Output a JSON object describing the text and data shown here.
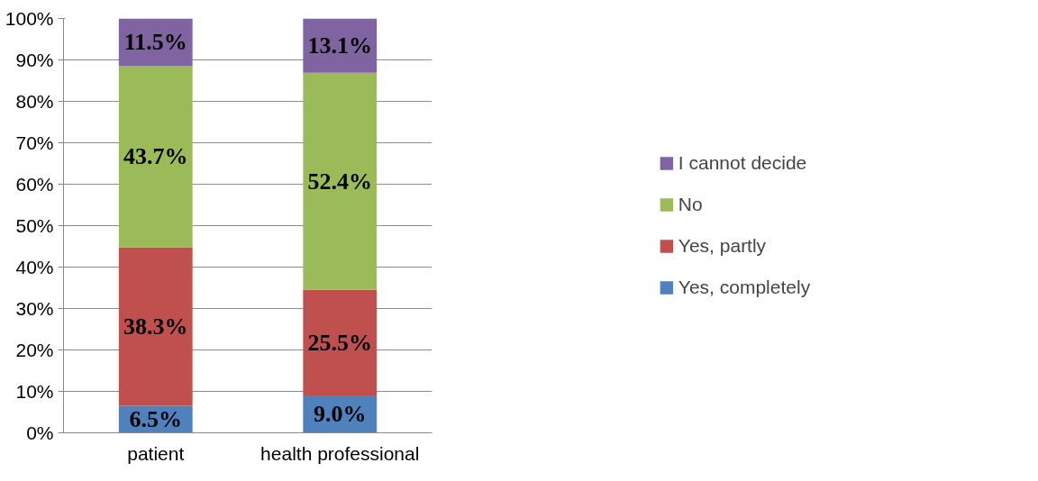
{
  "chart_data": {
    "type": "bar",
    "stacked": true,
    "categories": [
      "patient",
      "health professional"
    ],
    "ylim": [
      0,
      100
    ],
    "yticks": [
      {
        "value": 0,
        "label": "0%"
      },
      {
        "value": 10,
        "label": "10%"
      },
      {
        "value": 20,
        "label": "20%"
      },
      {
        "value": 30,
        "label": "30%"
      },
      {
        "value": 40,
        "label": "40%"
      },
      {
        "value": 50,
        "label": "50%"
      },
      {
        "value": 60,
        "label": "60%"
      },
      {
        "value": 70,
        "label": "70%"
      },
      {
        "value": 80,
        "label": "80%"
      },
      {
        "value": 90,
        "label": "90%"
      },
      {
        "value": 100,
        "label": "100%"
      }
    ],
    "series": [
      {
        "name": "Yes, completely",
        "color": "#4f81bd",
        "values": [
          6.5,
          9.0
        ],
        "value_labels": [
          "6.5%",
          "9.0%"
        ]
      },
      {
        "name": "Yes, partly",
        "color": "#c0504d",
        "values": [
          38.3,
          25.5
        ],
        "value_labels": [
          "38.3%",
          "25.5%"
        ]
      },
      {
        "name": "No",
        "color": "#9bbb59",
        "values": [
          43.7,
          52.4
        ],
        "value_labels": [
          "43.7%",
          "52.4%"
        ]
      },
      {
        "name": "I cannot decide",
        "color": "#8064a2",
        "values": [
          11.5,
          13.1
        ],
        "value_labels": [
          "11.5%",
          "13.1%"
        ]
      }
    ],
    "grid": "y",
    "legend": "right"
  }
}
